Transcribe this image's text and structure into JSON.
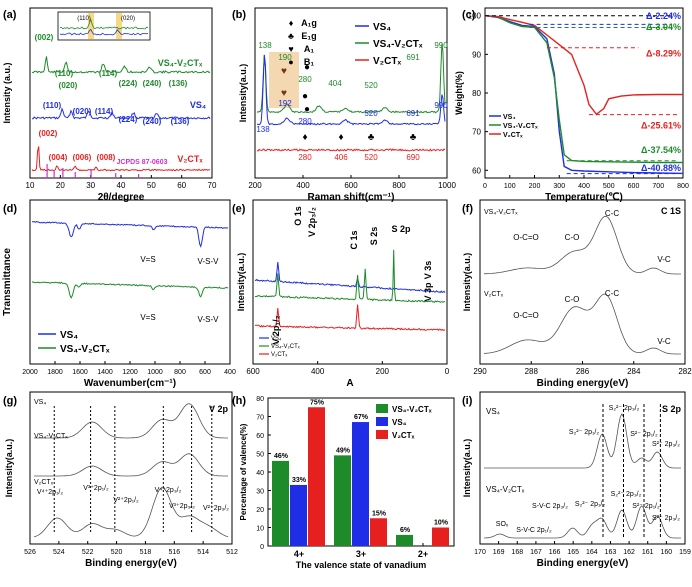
{
  "panel_labels": [
    "(a)",
    "(b)",
    "(c)",
    "(d)",
    "(e)",
    "(f)",
    "(g)",
    "(h)",
    "(i)"
  ],
  "colors": {
    "vs4": "#1f2de6",
    "vs4v2ctx": "#1e8b2a",
    "v2ctx": "#e6201f",
    "gray": "#808080",
    "pink": "#cc33cc",
    "orange": "#f0a060",
    "cyan": "#58c8e8",
    "mint": "#8fd08f",
    "rose": "#e88a8a",
    "yellow": "#e8e020",
    "violet": "#8a7ab0",
    "lightgray": "#c8c8c8"
  },
  "a": {
    "xlabel": "2θ/degree",
    "ylabel": "Intensity (a.u.)",
    "xticks": [
      "10",
      "20",
      "30",
      "40",
      "50",
      "60",
      "70"
    ],
    "inset_labels": [
      "(110)",
      "(020)"
    ],
    "series_labels": {
      "vs4v2ctx": "VS₄-V₂CTₓ",
      "vs4": "VS₄",
      "v2ctx": "V₂CTₓ"
    },
    "jcpds": "JCPDS 87-0603",
    "peaks_vs4v2ctx": [
      "(002)",
      "(110)",
      "(020)",
      "(114)",
      "(224)",
      "(240)",
      "(136)"
    ],
    "peaks_vs4": [
      "(110)",
      "(020)",
      "(114)",
      "(224)",
      "(240)",
      "(136)"
    ],
    "peaks_v2ctx": [
      "(002)",
      "(004)",
      "(006)",
      "(008)"
    ]
  },
  "b": {
    "xlabel": "Raman shift(cm⁻¹)",
    "ylabel": "Intensity(a.u.)",
    "xticks": [
      "200",
      "400",
      "600",
      "800",
      "1000"
    ],
    "legend": [
      {
        "label": "VS₄"
      },
      {
        "label": "VS₄-V₂CTₓ"
      },
      {
        "label": "V₂CTₓ"
      }
    ],
    "modes": [
      {
        "sym": "♦",
        "label": "A₁g"
      },
      {
        "sym": "♣",
        "label": "E₁g"
      },
      {
        "sym": "♥",
        "label": "A₁"
      },
      {
        "sym": "●",
        "label": "B₁"
      }
    ],
    "labels_vs4v2ctx": [
      "138",
      "190",
      "280",
      "404",
      "520",
      "691",
      "990"
    ],
    "labels_vs4": [
      "138",
      "192",
      "280",
      "520",
      "691",
      "990"
    ],
    "labels_v2ctx": [
      "280",
      "406",
      "520",
      "690"
    ],
    "markers": [
      "♥",
      "♥",
      "●",
      "♦",
      "●",
      "♦",
      "♣",
      "♣",
      "●"
    ]
  },
  "c": {
    "xlabel": "Temperature(℃)",
    "ylabel": "Weight(%)",
    "xticks": [
      "0",
      "100",
      "200",
      "300",
      "400",
      "500",
      "600",
      "700",
      "800"
    ],
    "yticks": [
      "60",
      "70",
      "80",
      "90",
      "100"
    ],
    "legend": [
      {
        "label": "VS₄"
      },
      {
        "label": "VS₄-V₂CTₓ"
      },
      {
        "label": "V₂CTₓ"
      }
    ],
    "annotations": [
      "Δ-2.24%",
      "Δ-3.04%",
      "Δ-8.29%",
      "Δ-25.61%",
      "Δ-37.54%",
      "Δ-40.88%"
    ]
  },
  "d": {
    "xlabel": "Wavenumber(cm⁻¹)",
    "ylabel": "Transmittance",
    "xticks": [
      "2000",
      "1800",
      "1600",
      "1400",
      "1200",
      "1000",
      "800",
      "600",
      "400"
    ],
    "legend": [
      {
        "label": "VS₄"
      },
      {
        "label": "VS₄-V₂CTₓ"
      }
    ],
    "annotations": [
      "V=S",
      "V-S-V",
      "V=S",
      "V-S-V"
    ]
  },
  "e": {
    "xlabel": "A",
    "ylabel": "Intensity(a.u.)",
    "xticks": [
      "600",
      "400",
      "200",
      "0"
    ],
    "legend": [
      {
        "label": "VS₄"
      },
      {
        "label": "VS₄-V₂CTₓ"
      },
      {
        "label": "V₂CTₓ"
      }
    ],
    "annotations": [
      "O 1s",
      "V 2p₃/₂",
      "V 2p₁/₂",
      "C 1s",
      "S 2s",
      "S 2p",
      "V 3s",
      "V 3p"
    ]
  },
  "f": {
    "xlabel": "Binding energy(eV)",
    "ylabel": "Intensity(a.u.)",
    "xticks": [
      "290",
      "288",
      "286",
      "284",
      "282"
    ],
    "top_title": "VS₄-V₂CTₓ",
    "bottom_title": "V₂CTₓ",
    "corner": "C 1S",
    "top_labels": [
      "O-C=O",
      "C-O",
      "C-C",
      "V-C"
    ],
    "bottom_labels": [
      "O-C=O",
      "C-O",
      "C-C",
      "V-C"
    ]
  },
  "g": {
    "xlabel": "Binding energy(eV)",
    "ylabel": "Intensity(a.u.)",
    "xticks": [
      "526",
      "524",
      "522",
      "520",
      "518",
      "516",
      "514",
      "512"
    ],
    "titles": [
      "VS₄",
      "VS₄-V₂CTₓ",
      "V₂CTₓ"
    ],
    "corner": "V 2p",
    "bottom_labels": [
      "V⁴⁺2p₁/₂",
      "V³⁺2p₁/₂",
      "V²⁺2p₁/₂",
      "V⁴⁺2p₃/₂",
      "V³⁺2p₃/₂",
      "V²⁺2p₃/₂"
    ]
  },
  "h": {
    "xlabel": "The valence state of vanadium",
    "ylabel": "Percentage of valence(%)",
    "yticks": [
      "0",
      "10",
      "20",
      "30",
      "40",
      "50",
      "60",
      "70",
      "80"
    ],
    "legend": [
      {
        "label": "VS₄-V₂CTₓ"
      },
      {
        "label": "VS₄"
      },
      {
        "label": "V₂CTₓ"
      }
    ]
  },
  "i": {
    "xlabel": "Binding energy(eV)",
    "ylabel": "Intensity(a.u.)",
    "xticks": [
      "170",
      "169",
      "168",
      "167",
      "166",
      "165",
      "164",
      "163",
      "162",
      "161",
      "160",
      "159"
    ],
    "titles": [
      "VS₄",
      "VS₄-V₂CTₓ"
    ],
    "corner": "S 2p",
    "top_labels": [
      "S₂²⁻ 2p₁/₂",
      "S₂²⁻ 2p₃/₂",
      "S²⁻ 2p₁/₂",
      "S²⁻ 2p₃/₂"
    ],
    "bottom_labels": [
      "SOₓ",
      "S-V-C 2p₁/₂",
      "S-V-C 2p₃/₂",
      "S₂²⁻ 2p₁/₂",
      "S₂²⁻ 2p₃/₂",
      "S²⁻ 2p₁/₂",
      "S²⁻ 2p₃/₂"
    ]
  },
  "chart_data": [
    {
      "panel": "h",
      "type": "bar",
      "categories": [
        "4+",
        "3+",
        "2+"
      ],
      "ylim": [
        0,
        80
      ],
      "series": [
        {
          "name": "VS₄-V₂CTₓ",
          "values": [
            46,
            49,
            6
          ]
        },
        {
          "name": "VS₄",
          "values": [
            33,
            67,
            0
          ]
        },
        {
          "name": "V₂CTₓ",
          "values": [
            75,
            15,
            10
          ]
        }
      ],
      "data_labels": [
        [
          "46%",
          "49%",
          "6%"
        ],
        [
          "33%",
          "67%",
          ""
        ],
        [
          "75%",
          "15%",
          "10%"
        ]
      ]
    },
    {
      "panel": "c",
      "type": "line",
      "xlim": [
        0,
        800
      ],
      "ylim": [
        58,
        102
      ],
      "series": [
        {
          "name": "VS₄",
          "x": [
            0,
            50,
            100,
            150,
            200,
            250,
            280,
            300,
            320,
            350,
            400,
            500,
            600,
            700,
            800
          ],
          "y": [
            100,
            99.6,
            98.5,
            97.5,
            97.2,
            94,
            85,
            70,
            61,
            60,
            59.8,
            59.6,
            59.4,
            59.3,
            59.2
          ]
        },
        {
          "name": "VS₄-V₂CTₓ",
          "x": [
            0,
            50,
            100,
            150,
            200,
            250,
            280,
            300,
            320,
            350,
            400,
            500,
            600,
            700,
            800
          ],
          "y": [
            100,
            99.7,
            98.2,
            97.2,
            97,
            93,
            84,
            73,
            64,
            62.5,
            62.3,
            62.2,
            62.1,
            62,
            62
          ]
        },
        {
          "name": "V₂CTₓ",
          "x": [
            0,
            50,
            100,
            150,
            200,
            250,
            300,
            350,
            400,
            420,
            450,
            480,
            500,
            550,
            600,
            700,
            800
          ],
          "y": [
            100,
            99.8,
            99,
            98.3,
            97.5,
            95,
            92.5,
            90,
            82,
            77,
            74.5,
            76,
            78.5,
            79.2,
            79.5,
            79.6,
            79.6
          ]
        }
      ]
    }
  ]
}
